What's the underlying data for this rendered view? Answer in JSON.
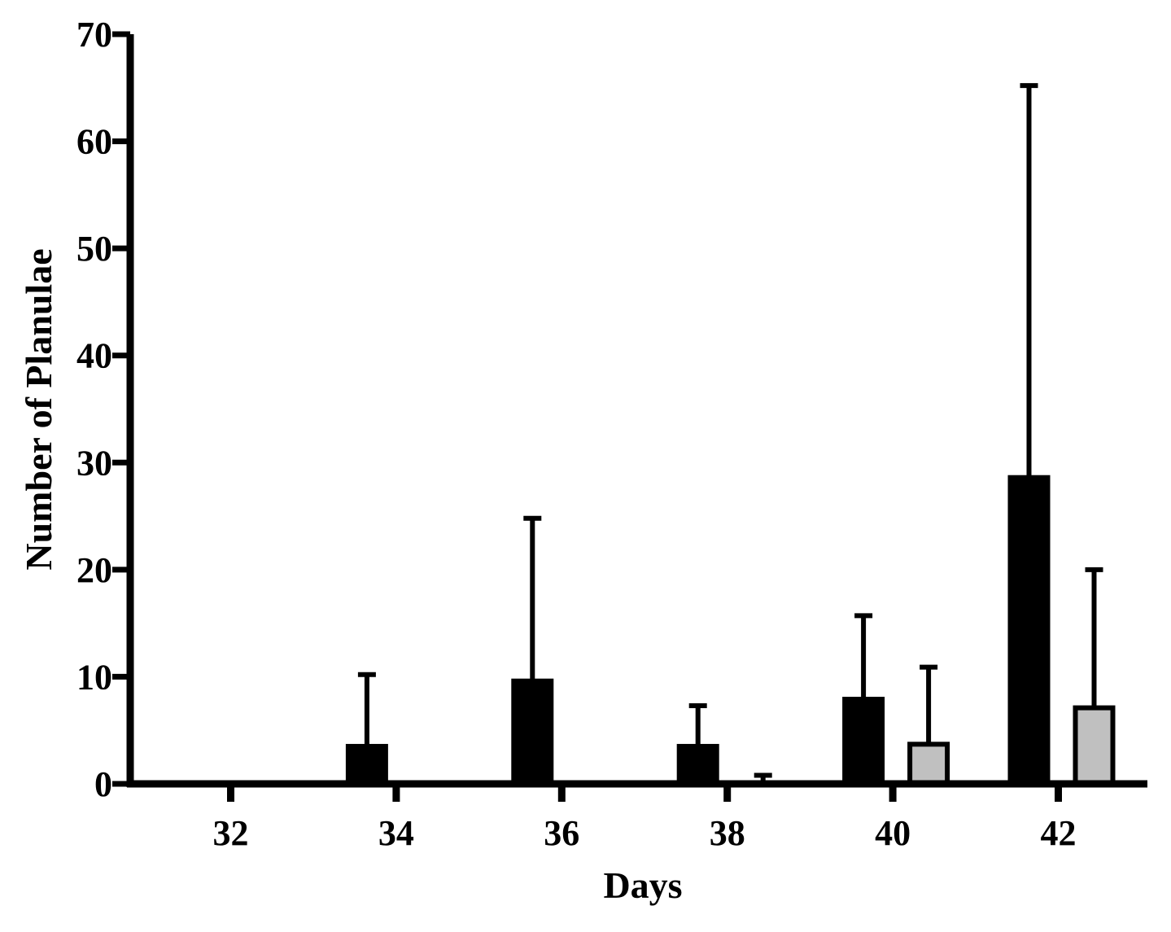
{
  "chart_data": {
    "type": "bar",
    "xlabel": "Days",
    "ylabel": "Number of Planulae",
    "ylim": [
      0,
      70
    ],
    "y_ticks": [
      0,
      10,
      20,
      30,
      40,
      50,
      60,
      70
    ],
    "x_ticks": [
      32,
      34,
      36,
      38,
      40,
      42
    ],
    "series": [
      {
        "fill": "#000000",
        "points": [
          {
            "day": 32,
            "mean": 0,
            "error": 0
          },
          {
            "day": 34,
            "mean": 3.5,
            "error": 6.7
          },
          {
            "day": 36,
            "mean": 9.6,
            "error": 15.2
          },
          {
            "day": 38,
            "mean": 3.5,
            "error": 3.8
          },
          {
            "day": 40,
            "mean": 7.9,
            "error": 7.8
          },
          {
            "day": 42,
            "mean": 28.6,
            "error": 36.6
          }
        ]
      },
      {
        "fill": "#c0c0c0",
        "points": [
          {
            "day": 32,
            "mean": 0,
            "error": 0
          },
          {
            "day": 34,
            "mean": 0,
            "error": 0
          },
          {
            "day": 36,
            "mean": 0,
            "error": 0
          },
          {
            "day": 38,
            "mean": 0,
            "error": 0.8
          },
          {
            "day": 40,
            "mean": 3.7,
            "error": 7.2
          },
          {
            "day": 42,
            "mean": 7.1,
            "error": 12.9
          }
        ]
      }
    ],
    "grid": false,
    "legend": "none"
  }
}
